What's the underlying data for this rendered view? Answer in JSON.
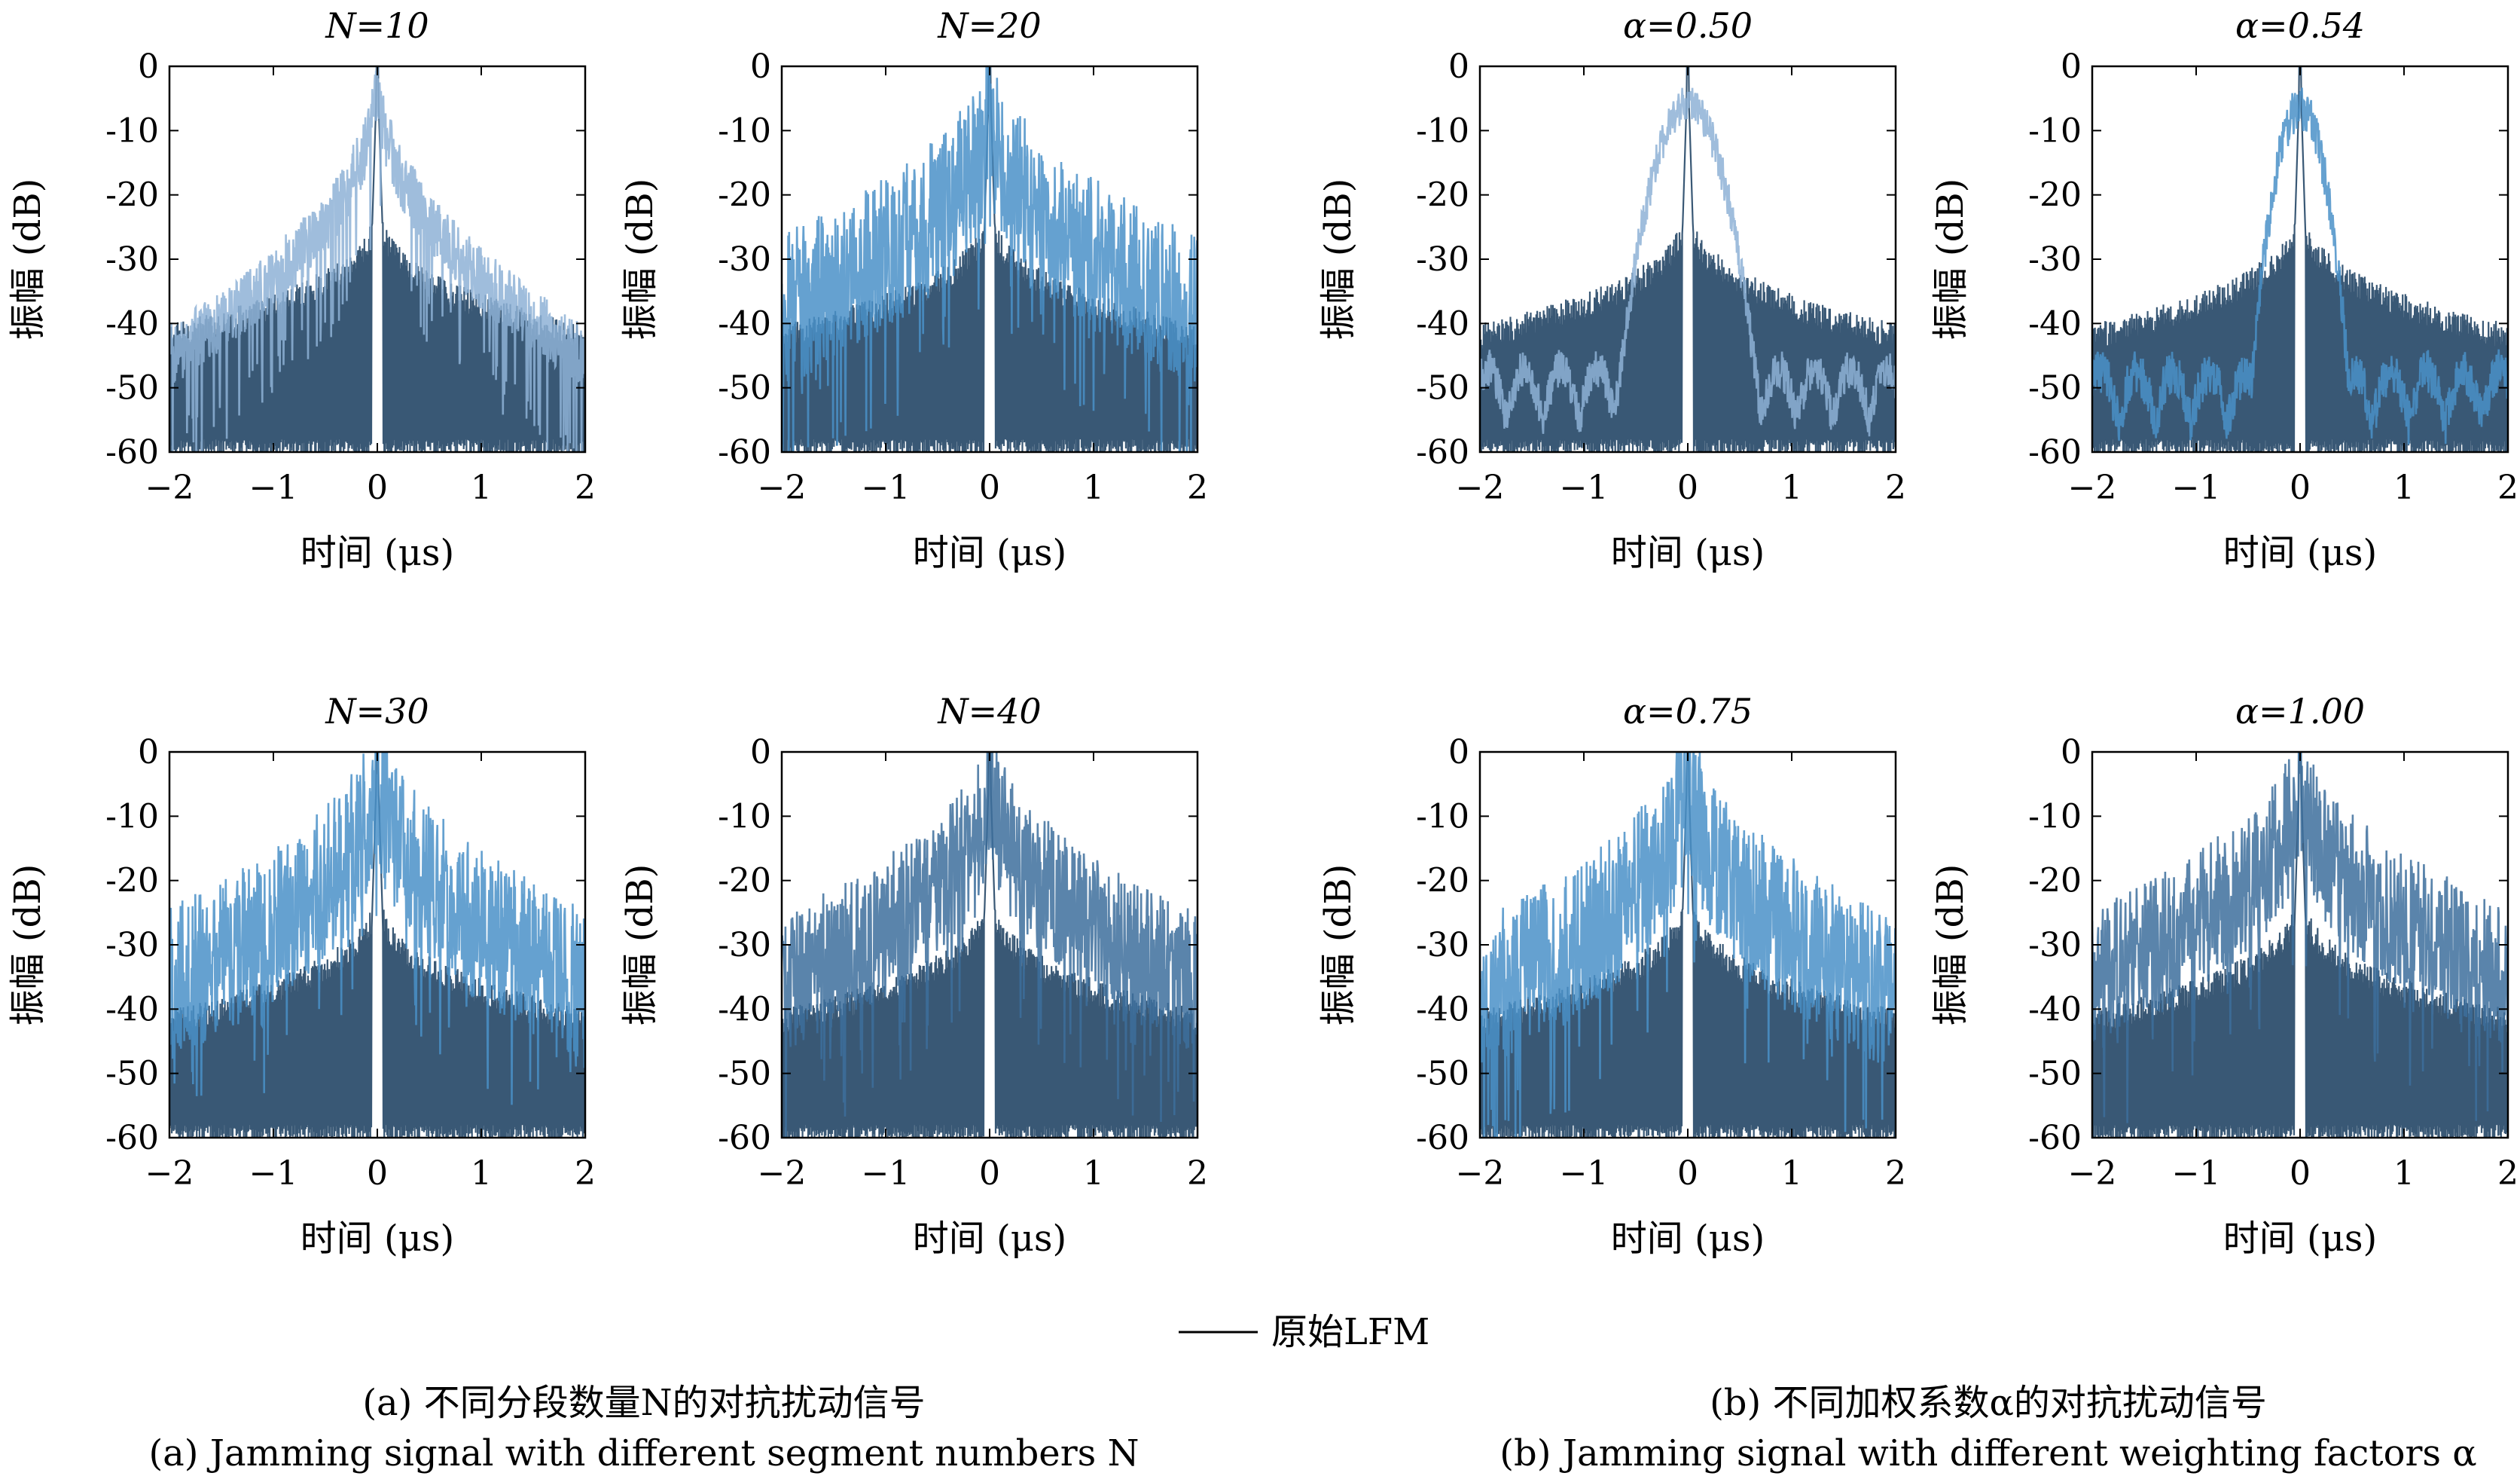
{
  "legend": {
    "label": "原始LFM",
    "color": "#000000"
  },
  "captions": {
    "a_zh": "(a) 不同分段数量N的对抗扰动信号",
    "a_en": "(a) Jamming signal with different segment numbers N",
    "b_zh": "(b) 不同加权系数α的对抗扰动信号",
    "b_en": "(b) Jamming signal with different weighting factors α"
  },
  "colors": {
    "lfm": "#2e4f6e",
    "jamming_light": "#8eb2d6",
    "jamming_mid": "#4a90c8",
    "jamming_dark": "#3d6f9c",
    "gray_trace": "#9a9a9a"
  },
  "chart_data": [
    {
      "type": "line",
      "title": "N=10",
      "xlabel": "时间 (μs)",
      "ylabel": "振幅 (dB)",
      "xlim": [
        -2,
        2
      ],
      "ylim": [
        -60,
        0
      ],
      "xticks": [
        "−2",
        "−1",
        "0",
        "1",
        "2"
      ],
      "yticks": [
        "0",
        "-10",
        "-20",
        "-30",
        "-40",
        "-50",
        "-60"
      ],
      "series": [
        {
          "name": "原始LFM",
          "shape": "lfm",
          "peak": 0,
          "floor": -58
        },
        {
          "shape": "jam",
          "peak": 0,
          "width": 0.45,
          "edge": -45,
          "noise": 5,
          "color": "jamming_light"
        }
      ]
    },
    {
      "type": "line",
      "title": "N=20",
      "xlabel": "时间 (μs)",
      "ylabel": "振幅 (dB)",
      "xlim": [
        -2,
        2
      ],
      "ylim": [
        -60,
        0
      ],
      "xticks": [
        "−2",
        "−1",
        "0",
        "1",
        "2"
      ],
      "yticks": [
        "0",
        "-10",
        "-20",
        "-30",
        "-40",
        "-50",
        "-60"
      ],
      "series": [
        {
          "name": "原始LFM",
          "shape": "lfm",
          "peak": 0,
          "floor": -58
        },
        {
          "shape": "jam",
          "peak": -5,
          "width": 0.35,
          "edge": -38,
          "noise": 12,
          "color": "jamming_mid"
        }
      ]
    },
    {
      "type": "line",
      "title": "α=0.50",
      "xlabel": "时间 (μs)",
      "ylabel": "振幅 (dB)",
      "xlim": [
        -2,
        2
      ],
      "ylim": [
        -60,
        0
      ],
      "xticks": [
        "−2",
        "−1",
        "0",
        "1",
        "2"
      ],
      "yticks": [
        "0",
        "-10",
        "-20",
        "-30",
        "-40",
        "-50",
        "-60"
      ],
      "series": [
        {
          "name": "原始LFM",
          "shape": "lfm",
          "peak": 0,
          "floor": -58
        },
        {
          "shape": "bell",
          "peak": -3,
          "width": 0.35,
          "edge": -52,
          "noise": 6,
          "color": "jamming_light"
        }
      ]
    },
    {
      "type": "line",
      "title": "α=0.54",
      "xlabel": "时间 (μs)",
      "ylabel": "振幅 (dB)",
      "xlim": [
        -2,
        2
      ],
      "ylim": [
        -60,
        0
      ],
      "xticks": [
        "−2",
        "−1",
        "0",
        "1",
        "2"
      ],
      "yticks": [
        "0",
        "-10",
        "-20",
        "-30",
        "-40",
        "-50",
        "-60"
      ],
      "series": [
        {
          "name": "原始LFM",
          "shape": "lfm",
          "peak": 0,
          "floor": -58
        },
        {
          "shape": "bell",
          "peak": -3,
          "width": 0.25,
          "edge": -52,
          "noise": 7,
          "color": "jamming_mid"
        }
      ]
    },
    {
      "type": "line",
      "title": "N=30",
      "xlabel": "时间 (μs)",
      "ylabel": "振幅 (dB)",
      "xlim": [
        -2,
        2
      ],
      "ylim": [
        -60,
        0
      ],
      "xticks": [
        "−2",
        "−1",
        "0",
        "1",
        "2"
      ],
      "yticks": [
        "0",
        "-10",
        "-20",
        "-30",
        "-40",
        "-50",
        "-60"
      ],
      "series": [
        {
          "name": "原始LFM",
          "shape": "lfm",
          "peak": 0,
          "floor": -58
        },
        {
          "shape": "jam",
          "peak": -2,
          "width": 0.35,
          "edge": -36,
          "noise": 12,
          "color": "jamming_mid"
        }
      ]
    },
    {
      "type": "line",
      "title": "N=40",
      "xlabel": "时间 (μs)",
      "ylabel": "振幅 (dB)",
      "xlim": [
        -2,
        2
      ],
      "ylim": [
        -60,
        0
      ],
      "xticks": [
        "−2",
        "−1",
        "0",
        "1",
        "2"
      ],
      "yticks": [
        "0",
        "-10",
        "-20",
        "-30",
        "-40",
        "-50",
        "-60"
      ],
      "series": [
        {
          "name": "原始LFM",
          "shape": "lfm",
          "peak": 0,
          "floor": -58
        },
        {
          "shape": "jam",
          "peak": -3,
          "width": 0.4,
          "edge": -36,
          "noise": 11,
          "color": "jamming_dark"
        }
      ]
    },
    {
      "type": "line",
      "title": "α=0.75",
      "xlabel": "时间 (μs)",
      "ylabel": "振幅 (dB)",
      "xlim": [
        -2,
        2
      ],
      "ylim": [
        -60,
        0
      ],
      "xticks": [
        "−2",
        "−1",
        "0",
        "1",
        "2"
      ],
      "yticks": [
        "0",
        "-10",
        "-20",
        "-30",
        "-40",
        "-50",
        "-60"
      ],
      "series": [
        {
          "name": "原始LFM",
          "shape": "lfm",
          "peak": 0,
          "floor": -58
        },
        {
          "shape": "jam",
          "peak": -2,
          "width": 0.3,
          "edge": -38,
          "noise": 12,
          "color": "jamming_mid"
        }
      ]
    },
    {
      "type": "line",
      "title": "α=1.00",
      "xlabel": "时间 (μs)",
      "ylabel": "振幅 (dB)",
      "xlim": [
        -2,
        2
      ],
      "ylim": [
        -60,
        0
      ],
      "xticks": [
        "−2",
        "−1",
        "0",
        "1",
        "2"
      ],
      "yticks": [
        "0",
        "-10",
        "-20",
        "-30",
        "-40",
        "-50",
        "-60"
      ],
      "series": [
        {
          "name": "原始LFM",
          "shape": "lfm",
          "peak": 0,
          "floor": -58
        },
        {
          "shape": "jam",
          "peak": -3,
          "width": 0.35,
          "edge": -35,
          "noise": 11,
          "color": "jamming_dark"
        }
      ]
    }
  ]
}
